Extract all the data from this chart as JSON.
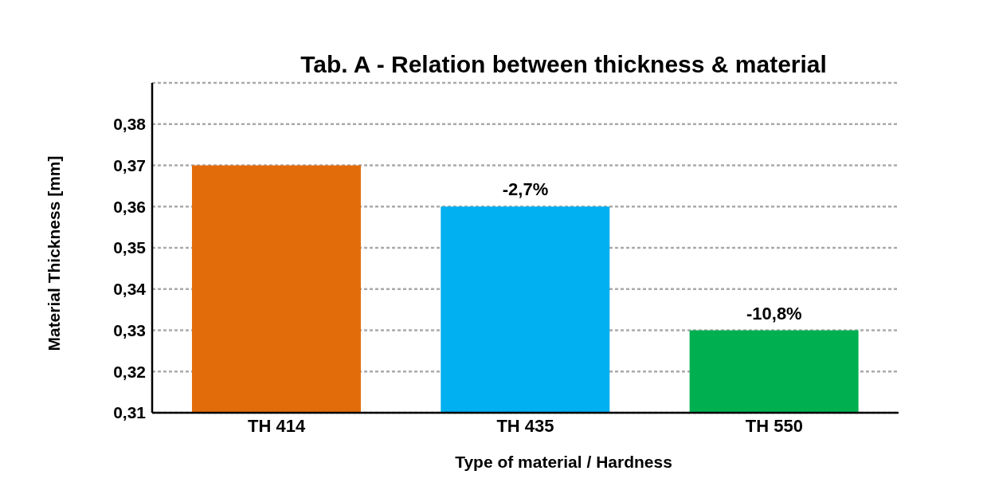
{
  "chart_data": {
    "type": "bar",
    "title": "Tab. A - Relation between thickness & material",
    "xlabel": "Type of material / Hardness",
    "ylabel": "Material Thickness [mm]",
    "categories": [
      "TH 414",
      "TH 435",
      "TH 550"
    ],
    "values": [
      0.37,
      0.36,
      0.33
    ],
    "colors": [
      "#e36c0a",
      "#00b0f0",
      "#00b050"
    ],
    "annotations": [
      {
        "text": "-2,7%",
        "x": "TH 435",
        "y": 0.36
      },
      {
        "text": "-10,8%",
        "x": "TH 550",
        "y": 0.33
      }
    ],
    "ylim": [
      0.31,
      0.39
    ],
    "yticks": [
      {
        "value": 0.31,
        "label": "0,31"
      },
      {
        "value": 0.32,
        "label": "0,32"
      },
      {
        "value": 0.33,
        "label": "0,33"
      },
      {
        "value": 0.34,
        "label": "0,34"
      },
      {
        "value": 0.35,
        "label": "0,35"
      },
      {
        "value": 0.36,
        "label": "0,36"
      },
      {
        "value": 0.37,
        "label": "0,37"
      },
      {
        "value": 0.38,
        "label": "0,38"
      }
    ],
    "grid": "y",
    "legend": false
  }
}
